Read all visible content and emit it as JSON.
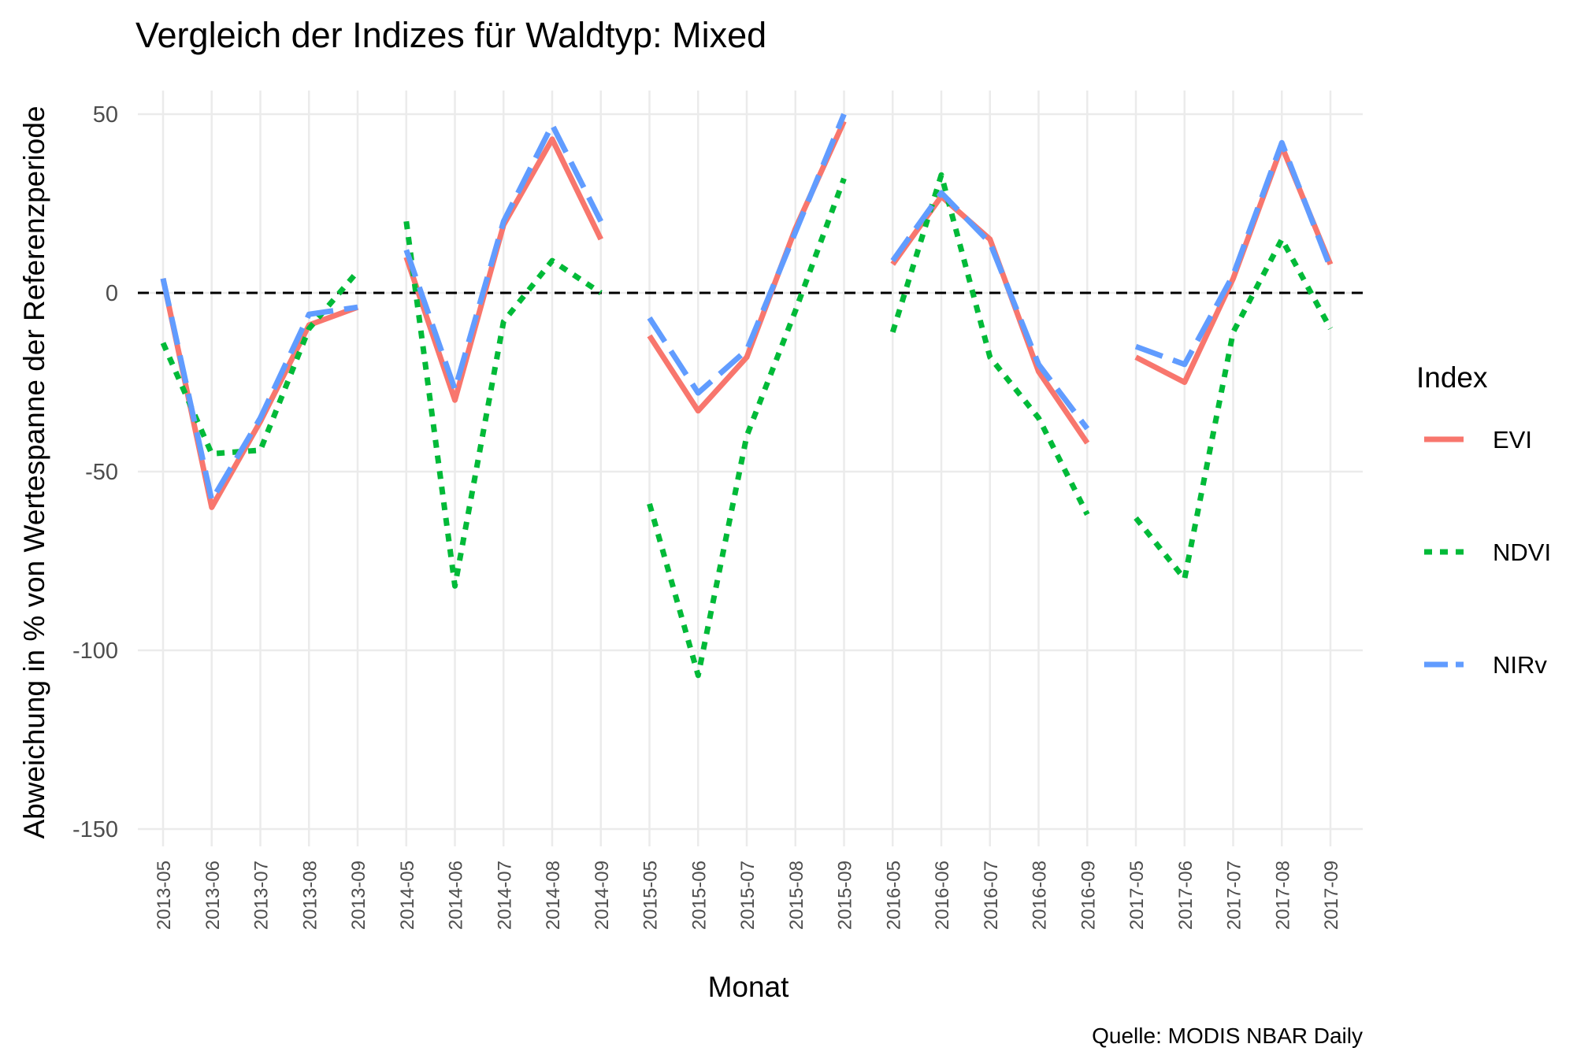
{
  "chart_data": {
    "type": "line",
    "title": "Vergleich der Indizes für Waldtyp: Mixed",
    "xlabel": "Monat",
    "ylabel": "Abweichung in % von Wertespanne der Referenzperiode",
    "caption": "Quelle: MODIS NBAR Daily",
    "legend_title": "Index",
    "legend_position": "right",
    "grid": true,
    "ylim": [
      -158,
      60
    ],
    "y_ticks": [
      -150,
      -100,
      -50,
      0,
      50
    ],
    "y_tick_labels": [
      "-150",
      "-100",
      "-50",
      "0",
      "50"
    ],
    "reference_line": 0,
    "categories": [
      "2013-05",
      "2013-06",
      "2013-07",
      "2013-08",
      "2013-09",
      "2014-05",
      "2014-06",
      "2014-07",
      "2014-08",
      "2014-09",
      "2015-05",
      "2015-06",
      "2015-07",
      "2015-08",
      "2015-09",
      "2016-05",
      "2016-06",
      "2016-07",
      "2016-08",
      "2016-09",
      "2017-05",
      "2017-06",
      "2017-07",
      "2017-08",
      "2017-09"
    ],
    "line_groups": "one line segment per year (May–September); no line between years",
    "series": [
      {
        "name": "EVI",
        "color": "#F8766D",
        "dash": "solid",
        "values": [
          4,
          -60,
          -36,
          -9,
          -4,
          10,
          -30,
          19,
          43,
          15,
          -12,
          -33,
          -18,
          18,
          48,
          8,
          27,
          15,
          -22,
          -42,
          -18,
          -25,
          4,
          41,
          8
        ]
      },
      {
        "name": "NDVI",
        "color": "#00BA38",
        "dash": "dotted",
        "values": [
          -14,
          -45,
          -44,
          -10,
          6,
          20,
          -82,
          -8,
          9,
          0,
          -59,
          -107,
          -40,
          -5,
          32,
          -11,
          33,
          -18,
          -35,
          -62,
          -63,
          -80,
          -11,
          15,
          -10
        ]
      },
      {
        "name": "NIRv",
        "color": "#619CFF",
        "dash": "longdash",
        "values": [
          4,
          -58,
          -35,
          -6,
          -4,
          12,
          -27,
          20,
          47,
          20,
          -7,
          -28,
          -16,
          17,
          50,
          9,
          28,
          14,
          -20,
          -38,
          -15,
          -20,
          5,
          42,
          7
        ]
      }
    ]
  }
}
